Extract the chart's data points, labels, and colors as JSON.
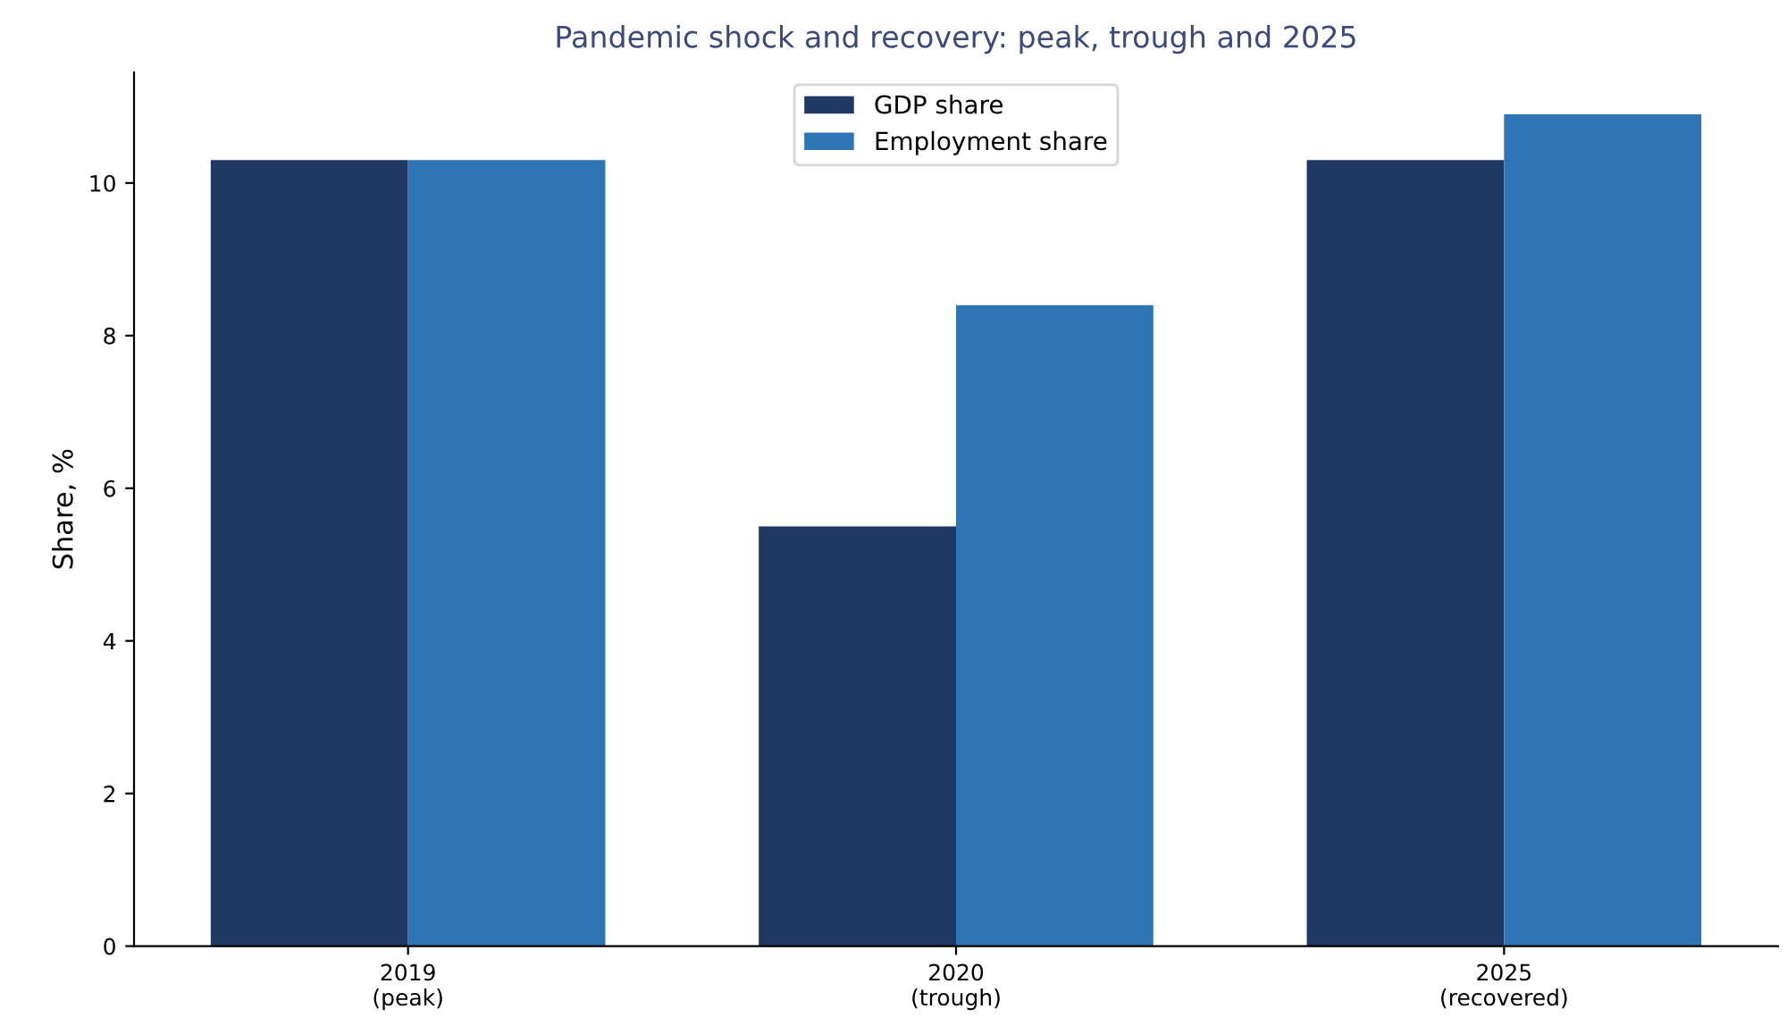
{
  "chart_data": {
    "type": "bar",
    "title": "Pandemic shock and recovery: peak, trough and 2025",
    "ylabel": "Share, %",
    "categories": [
      "2019\n(peak)",
      "2020\n(trough)",
      "2025\n(recovered)"
    ],
    "series": [
      {
        "name": "GDP share",
        "color": "#1f3864",
        "values": [
          10.3,
          5.5,
          10.3
        ]
      },
      {
        "name": "Employment share",
        "color": "#2e75b6",
        "values": [
          10.3,
          8.4,
          10.9
        ]
      }
    ],
    "ylim": [
      0,
      11.45
    ],
    "yticks": [
      0,
      2,
      4,
      6,
      8,
      10
    ],
    "grid": false,
    "legend": "top"
  }
}
